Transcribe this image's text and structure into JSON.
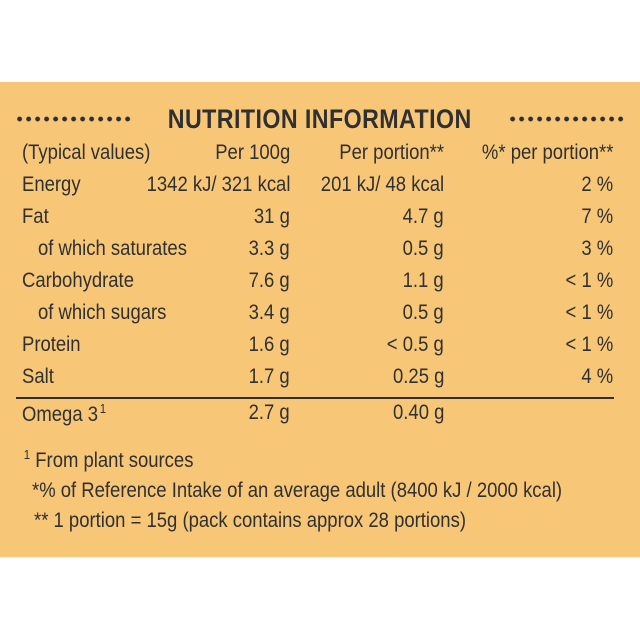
{
  "title": "NUTRITION INFORMATION",
  "header": {
    "c0": "(Typical values)",
    "c1": "Per 100g",
    "c2": "Per portion**",
    "c3": "%* per portion**"
  },
  "rows": [
    {
      "label": "Energy",
      "per100": "1342 kJ/ 321 kcal",
      "portion": "201 kJ/ 48 kcal",
      "pct": "2 %"
    },
    {
      "label": "Fat",
      "per100": "31 g",
      "portion": "4.7 g",
      "pct": "7 %"
    },
    {
      "label": "of which saturates",
      "per100": "3.3 g",
      "portion": "0.5 g",
      "pct": "3 %"
    },
    {
      "label": "Carbohydrate",
      "per100": "7.6 g",
      "portion": "1.1 g",
      "pct": "< 1 %"
    },
    {
      "label": "of which sugars",
      "per100": "3.4 g",
      "portion": "0.5 g",
      "pct": "< 1 %"
    },
    {
      "label": "Protein",
      "per100": "1.6 g",
      "portion": "< 0.5 g",
      "pct": "< 1 %"
    },
    {
      "label": "Salt",
      "per100": "1.7 g",
      "portion": "0.25 g",
      "pct": "4 %"
    }
  ],
  "omega": {
    "label": "Omega 3",
    "marker": "1",
    "per100": "2.7 g",
    "portion": "0.40 g"
  },
  "notes": {
    "n1_marker": "1",
    "n1": "From plant sources",
    "n2": "*% of Reference Intake of an average adult (8400 kJ / 2000 kcal)",
    "n3": "** 1 portion = 15g (pack contains approx 28 portions)"
  }
}
